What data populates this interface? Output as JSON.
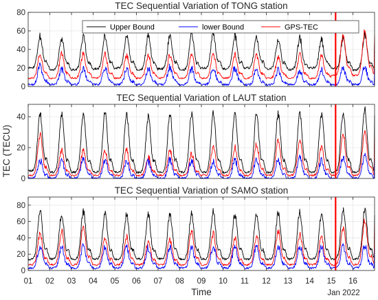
{
  "chart_data": {
    "type": "line",
    "ylabel": "TEC (TECU)",
    "xlabel": "Time",
    "date_label": "Jan 2022",
    "x_ticks": [
      "01",
      "02",
      "03",
      "04",
      "05",
      "06",
      "07",
      "08",
      "09",
      "10",
      "11",
      "12",
      "13",
      "14",
      "15",
      "16"
    ],
    "xlim": [
      1,
      17
    ],
    "event_line_x": 15.2,
    "grid": true,
    "legend": {
      "placement": "top",
      "panel": 0
    },
    "colors": {
      "upper": "#000000",
      "lower": "#0000ff",
      "gps": "#ff0000",
      "event": "#ff0000"
    },
    "panels": [
      {
        "title": "TEC Sequential Variation of TONG station",
        "ylim": [
          0,
          80
        ],
        "yticks": [
          "0",
          "20",
          "40",
          "60",
          "80"
        ],
        "series": [
          {
            "name": "Upper Bound",
            "role": "upper",
            "daily_min": [
              20,
              18,
              18,
              19,
              20,
              18,
              19,
              18,
              20,
              19,
              20,
              19,
              18,
              20,
              19,
              18
            ],
            "daily_max": [
              54,
              52,
              55,
              55,
              54,
              55,
              55,
              56,
              56,
              55,
              53,
              52,
              52,
              50,
              52,
              56
            ]
          },
          {
            "name": "lower Bound",
            "role": "lower",
            "daily_min": [
              2,
              2,
              2,
              2,
              2,
              2,
              2,
              2,
              2,
              2,
              2,
              2,
              2,
              2,
              2,
              2
            ],
            "daily_max": [
              22,
              19,
              20,
              20,
              19,
              19,
              21,
              19,
              20,
              20,
              18,
              17,
              17,
              18,
              20,
              21
            ]
          },
          {
            "name": "GPS-TEC",
            "role": "gps",
            "daily_min": [
              9,
              9,
              9,
              9,
              9,
              9,
              9,
              9,
              9,
              9,
              9,
              9,
              9,
              9,
              12,
              12
            ],
            "daily_max": [
              35,
              35,
              35,
              35,
              34,
              34,
              34,
              33,
              35,
              34,
              33,
              32,
              34,
              33,
              55,
              60
            ]
          }
        ]
      },
      {
        "title": "TEC Sequential Variation of LAUT station",
        "ylim": [
          0,
          48
        ],
        "yticks": [
          "0",
          "20",
          "40"
        ],
        "series": [
          {
            "name": "Upper Bound",
            "role": "upper",
            "daily_min": [
              5,
              4,
              4,
              4,
              4,
              4,
              4,
              4,
              4,
              4,
              4,
              4,
              4,
              4,
              4,
              4
            ],
            "daily_max": [
              42,
              42,
              42,
              42,
              42,
              40,
              42,
              42,
              42,
              42,
              42,
              42,
              42,
              42,
              43,
              45
            ]
          },
          {
            "name": "lower Bound",
            "role": "lower",
            "daily_min": [
              0,
              0,
              0,
              0,
              0,
              0,
              0,
              0,
              0,
              0,
              0,
              0,
              0,
              0,
              0,
              0
            ],
            "daily_max": [
              12,
              12,
              13,
              12,
              11,
              11,
              12,
              12,
              11,
              12,
              12,
              12,
              13,
              12,
              14,
              14
            ]
          },
          {
            "name": "GPS-TEC",
            "role": "gps",
            "daily_min": [
              2,
              2,
              2,
              2,
              2,
              2,
              2,
              2,
              2,
              2,
              2,
              2,
              2,
              2,
              2,
              2
            ],
            "daily_max": [
              28,
              18,
              18,
              18,
              18,
              14,
              18,
              16,
              20,
              20,
              22,
              24,
              24,
              20,
              28,
              30
            ]
          }
        ]
      },
      {
        "title": "TEC Sequential Variation of SAMO station",
        "ylim": [
          0,
          90
        ],
        "yticks": [
          "0",
          "20",
          "40",
          "60",
          "80"
        ],
        "series": [
          {
            "name": "Upper Bound",
            "role": "upper",
            "daily_min": [
              14,
              14,
              14,
              14,
              14,
              14,
              14,
              14,
              14,
              14,
              14,
              14,
              14,
              14,
              14,
              14
            ],
            "daily_max": [
              74,
              70,
              72,
              70,
              70,
              68,
              70,
              70,
              72,
              70,
              70,
              70,
              72,
              70,
              74,
              74
            ]
          },
          {
            "name": "lower Bound",
            "role": "lower",
            "daily_min": [
              3,
              3,
              3,
              3,
              3,
              3,
              3,
              3,
              3,
              3,
              3,
              3,
              3,
              3,
              3,
              3
            ],
            "daily_max": [
              30,
              29,
              30,
              28,
              28,
              28,
              29,
              29,
              30,
              29,
              30,
              29,
              30,
              29,
              30,
              30
            ]
          },
          {
            "name": "GPS-TEC",
            "role": "gps",
            "daily_min": [
              7,
              7,
              7,
              7,
              7,
              7,
              7,
              7,
              7,
              7,
              7,
              7,
              7,
              7,
              7,
              7
            ],
            "daily_max": [
              45,
              48,
              55,
              40,
              42,
              36,
              38,
              48,
              45,
              40,
              42,
              48,
              45,
              40,
              52,
              62
            ]
          }
        ]
      }
    ]
  }
}
